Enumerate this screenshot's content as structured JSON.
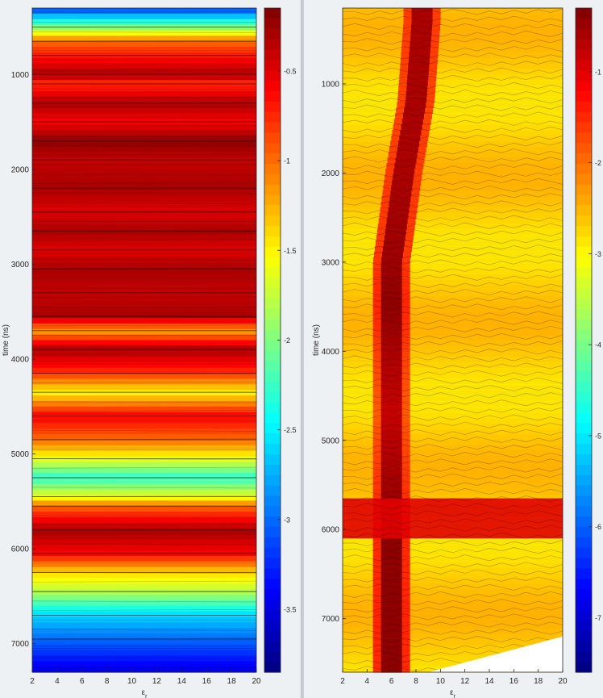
{
  "chart_data": [
    {
      "type": "heatmap",
      "title": "",
      "xlabel": "ε_r",
      "ylabel": "time (ns)",
      "xlim": [
        2,
        20
      ],
      "ylim": [
        7300,
        300
      ],
      "x_ticks": [
        2,
        4,
        6,
        8,
        10,
        12,
        14,
        16,
        18,
        20
      ],
      "y_ticks": [
        1000,
        2000,
        3000,
        4000,
        5000,
        6000,
        7000
      ],
      "colorbar": {
        "colormap": "jet",
        "clim": [
          -3.85,
          -0.15
        ],
        "ticks": [
          -0.5,
          -1,
          -1.5,
          -2,
          -2.5,
          -3,
          -3.5
        ]
      },
      "bands": [
        {
          "t": 300,
          "v": -3.2
        },
        {
          "t": 500,
          "v": -2.0
        },
        {
          "t": 650,
          "v": -1.0
        },
        {
          "t": 800,
          "v": -0.7
        },
        {
          "t": 1000,
          "v": -0.3
        },
        {
          "t": 1100,
          "v": -0.8
        },
        {
          "t": 1300,
          "v": -0.3
        },
        {
          "t": 1500,
          "v": -0.6
        },
        {
          "t": 1700,
          "v": -0.2
        },
        {
          "t": 1900,
          "v": -0.4
        },
        {
          "t": 2200,
          "v": -0.3
        },
        {
          "t": 2450,
          "v": -0.5
        },
        {
          "t": 2650,
          "v": -0.3
        },
        {
          "t": 2850,
          "v": -0.5
        },
        {
          "t": 3050,
          "v": -0.3
        },
        {
          "t": 3300,
          "v": -0.4
        },
        {
          "t": 3550,
          "v": -0.3
        },
        {
          "t": 3700,
          "v": -1.2
        },
        {
          "t": 3900,
          "v": -0.3
        },
        {
          "t": 4150,
          "v": -0.8
        },
        {
          "t": 4350,
          "v": -1.5
        },
        {
          "t": 4600,
          "v": -0.6
        },
        {
          "t": 4850,
          "v": -1.0
        },
        {
          "t": 5050,
          "v": -1.6
        },
        {
          "t": 5250,
          "v": -2.3
        },
        {
          "t": 5450,
          "v": -1.6
        },
        {
          "t": 5550,
          "v": -1.0
        },
        {
          "t": 5800,
          "v": -0.3
        },
        {
          "t": 6050,
          "v": -0.6
        },
        {
          "t": 6250,
          "v": -1.4
        },
        {
          "t": 6450,
          "v": -1.8
        },
        {
          "t": 6700,
          "v": -2.6
        },
        {
          "t": 6950,
          "v": -3.0
        },
        {
          "t": 7300,
          "v": -3.5
        }
      ]
    },
    {
      "type": "heatmap",
      "title": "",
      "xlabel": "ε_r",
      "ylabel": "time (ns)",
      "xlim": [
        2,
        20
      ],
      "ylim": [
        7600,
        150
      ],
      "x_ticks": [
        2,
        4,
        6,
        8,
        10,
        12,
        14,
        16,
        18,
        20
      ],
      "y_ticks": [
        1000,
        2000,
        3000,
        4000,
        5000,
        6000,
        7000
      ],
      "colorbar": {
        "colormap": "jet",
        "clim": [
          -7.6,
          -0.3
        ],
        "ticks": [
          -1,
          -2,
          -3,
          -4,
          -5,
          -6,
          -7
        ]
      },
      "background_value": -2.6,
      "ridge": [
        {
          "t": 300,
          "x": 8.5,
          "v": -0.6
        },
        {
          "t": 1200,
          "x": 8.0,
          "v": -0.6
        },
        {
          "t": 2000,
          "x": 7.0,
          "v": -0.6
        },
        {
          "t": 3000,
          "x": 6.0,
          "v": -0.5
        },
        {
          "t": 3500,
          "x": 6.0,
          "v": -0.4
        },
        {
          "t": 4000,
          "x": 6.0,
          "v": -0.6
        },
        {
          "t": 4700,
          "x": 6.0,
          "v": -0.8
        },
        {
          "t": 5900,
          "x": 6.0,
          "v": -0.4
        }
      ],
      "horizontal_band": {
        "t_start": 5650,
        "t_end": 6100,
        "x_start": 2,
        "x_end": 20,
        "v": -1.0
      }
    }
  ]
}
